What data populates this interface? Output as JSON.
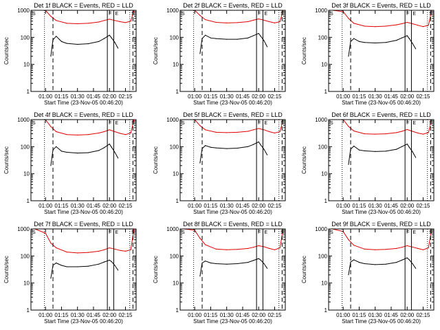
{
  "figure": {
    "start_label": "Start Time (23-Nov-05 00:46:20)",
    "ylabel": "Counts/sec",
    "series_colors": {
      "events": "#000000",
      "lld": "#e00000"
    },
    "marker_labels": {
      "S_start": "S",
      "F": "F",
      "E": "E",
      "S_end": "S"
    }
  },
  "chart_data": [
    {
      "type": "line",
      "title": "Det 1f BLACK = Events, RED = LLD",
      "xlabel": "Start Time (23-Nov-05 00:46:20)",
      "ylabel": "Counts/sec",
      "y_scale": "log",
      "ylim": [
        1,
        1000
      ],
      "xlim": [
        "00:46:20",
        "02:25"
      ],
      "x_ticks": [
        "01:00",
        "01:15",
        "01:30",
        "01:45",
        "02:00",
        "02:15"
      ],
      "y_ticks": [
        "1",
        "10",
        "100",
        "1000"
      ],
      "markers": {
        "dotted": [
          "00:59",
          "02:19"
        ],
        "dashed": [
          "01:07",
          "02:22"
        ],
        "solid_F": "01:58",
        "solid_E": "02:04"
      },
      "series": [
        {
          "name": "Events",
          "color": "#000000",
          "x": [
            "01:05",
            "01:07",
            "01:10",
            "01:15",
            "01:20",
            "01:30",
            "01:40",
            "01:50",
            "01:55",
            "02:00",
            "02:02",
            "02:05",
            "02:08"
          ],
          "y": [
            20,
            80,
            110,
            70,
            60,
            55,
            58,
            70,
            90,
            120,
            95,
            65,
            40
          ]
        },
        {
          "name": "LLD",
          "color": "#e00000",
          "x": [
            "00:50",
            "01:00",
            "01:05",
            "01:10",
            "01:20",
            "01:30",
            "01:40",
            "01:50",
            "01:55",
            "02:00",
            "02:05",
            "02:10",
            "02:15",
            "02:20",
            "02:23"
          ],
          "y": [
            1000,
            1000,
            600,
            420,
            330,
            320,
            330,
            370,
            420,
            470,
            420,
            380,
            350,
            400,
            1000
          ]
        }
      ]
    },
    {
      "type": "line",
      "title": "Det 2f BLACK = Events, RED = LLD",
      "xlabel": "Start Time (23-Nov-05 00:46:20)",
      "ylabel": "Counts/sec",
      "y_scale": "log",
      "ylim": [
        1,
        1000
      ],
      "xlim": [
        "00:46:20",
        "02:25"
      ],
      "x_ticks": [
        "01:00",
        "01:15",
        "01:30",
        "01:45",
        "02:00",
        "02:15"
      ],
      "y_ticks": [
        "1",
        "10",
        "100",
        "1000"
      ],
      "markers": {
        "dotted": [
          "00:59",
          "02:19"
        ],
        "dashed": [
          "01:07",
          "02:22"
        ],
        "solid_F": "01:58",
        "solid_E": "02:04"
      },
      "series": [
        {
          "name": "Events",
          "color": "#000000",
          "x": [
            "01:05",
            "01:07",
            "01:10",
            "01:15",
            "01:20",
            "01:30",
            "01:40",
            "01:50",
            "01:55",
            "02:00",
            "02:02",
            "02:05",
            "02:08"
          ],
          "y": [
            25,
            90,
            120,
            95,
            90,
            85,
            85,
            95,
            115,
            140,
            110,
            75,
            45
          ]
        },
        {
          "name": "LLD",
          "color": "#e00000",
          "x": [
            "00:50",
            "01:00",
            "01:05",
            "01:10",
            "01:20",
            "01:30",
            "01:40",
            "01:50",
            "01:55",
            "02:00",
            "02:05",
            "02:10",
            "02:15",
            "02:20",
            "02:23"
          ],
          "y": [
            1000,
            1000,
            650,
            450,
            360,
            340,
            350,
            380,
            430,
            480,
            430,
            380,
            340,
            380,
            1000
          ]
        }
      ]
    },
    {
      "type": "line",
      "title": "Det 3f BLACK = Events, RED = LLD",
      "xlabel": "Start Time (23-Nov-05 00:46:20)",
      "ylabel": "Counts/sec",
      "y_scale": "log",
      "ylim": [
        1,
        1000
      ],
      "xlim": [
        "00:46:20",
        "02:25"
      ],
      "x_ticks": [
        "01:00",
        "01:15",
        "01:30",
        "01:45",
        "02:00",
        "02:15"
      ],
      "y_ticks": [
        "1",
        "10",
        "100",
        "1000"
      ],
      "markers": {
        "dotted": [
          "00:59",
          "02:19"
        ],
        "dashed": [
          "01:07",
          "02:22"
        ],
        "solid_F": "01:58",
        "solid_E": "02:04"
      },
      "series": [
        {
          "name": "Events",
          "color": "#000000",
          "x": [
            "01:05",
            "01:07",
            "01:10",
            "01:15",
            "01:20",
            "01:30",
            "01:40",
            "01:50",
            "01:55",
            "02:00",
            "02:02",
            "02:05",
            "02:08"
          ],
          "y": [
            20,
            70,
            90,
            70,
            65,
            62,
            65,
            78,
            95,
            115,
            90,
            60,
            38
          ]
        },
        {
          "name": "LLD",
          "color": "#e00000",
          "x": [
            "00:50",
            "01:00",
            "01:05",
            "01:10",
            "01:20",
            "01:30",
            "01:40",
            "01:50",
            "01:55",
            "02:00",
            "02:05",
            "02:10",
            "02:15",
            "02:20",
            "02:23"
          ],
          "y": [
            1000,
            900,
            500,
            330,
            260,
            250,
            260,
            290,
            320,
            360,
            320,
            280,
            250,
            280,
            1000
          ]
        }
      ]
    },
    {
      "type": "line",
      "title": "Det 4f BLACK = Events, RED = LLD",
      "xlabel": "Start Time (23-Nov-05 00:46:20)",
      "ylabel": "Counts/sec",
      "y_scale": "log",
      "ylim": [
        1,
        1000
      ],
      "xlim": [
        "00:46:20",
        "02:25"
      ],
      "x_ticks": [
        "01:00",
        "01:15",
        "01:30",
        "01:45",
        "02:00",
        "02:15"
      ],
      "y_ticks": [
        "1",
        "10",
        "100",
        "1000"
      ],
      "markers": {
        "dotted": [
          "00:59",
          "02:19"
        ],
        "dashed": [
          "01:07",
          "02:22"
        ],
        "solid_F": "01:58",
        "solid_E": "02:04"
      },
      "series": [
        {
          "name": "Events",
          "color": "#000000",
          "x": [
            "01:05",
            "01:07",
            "01:10",
            "01:15",
            "01:20",
            "01:30",
            "01:40",
            "01:50",
            "01:55",
            "02:00",
            "02:02",
            "02:05",
            "02:08"
          ],
          "y": [
            20,
            75,
            100,
            68,
            62,
            58,
            60,
            72,
            92,
            125,
            95,
            62,
            38
          ]
        },
        {
          "name": "LLD",
          "color": "#e00000",
          "x": [
            "00:50",
            "01:00",
            "01:05",
            "01:10",
            "01:20",
            "01:30",
            "01:40",
            "01:50",
            "01:55",
            "02:00",
            "02:05",
            "02:10",
            "02:15",
            "02:20",
            "02:23"
          ],
          "y": [
            1000,
            1000,
            550,
            360,
            280,
            270,
            280,
            320,
            360,
            420,
            360,
            310,
            280,
            320,
            1000
          ]
        }
      ]
    },
    {
      "type": "line",
      "title": "Det 5f BLACK = Events, RED = LLD",
      "xlabel": "Start Time (23-Nov-05 00:46:20)",
      "ylabel": "Counts/sec",
      "y_scale": "log",
      "ylim": [
        1,
        1000
      ],
      "xlim": [
        "00:46:20",
        "02:25"
      ],
      "x_ticks": [
        "01:00",
        "01:15",
        "01:30",
        "01:45",
        "02:00",
        "02:15"
      ],
      "y_ticks": [
        "1",
        "10",
        "100",
        "1000"
      ],
      "markers": {
        "dotted": [
          "00:59",
          "02:19"
        ],
        "dashed": [
          "01:07",
          "02:22"
        ],
        "solid_F": "01:58",
        "solid_E": "02:04"
      },
      "series": [
        {
          "name": "Events",
          "color": "#000000",
          "x": [
            "01:05",
            "01:07",
            "01:10",
            "01:15",
            "01:20",
            "01:30",
            "01:40",
            "01:50",
            "01:55",
            "02:00",
            "02:02",
            "02:05",
            "02:08"
          ],
          "y": [
            25,
            85,
            110,
            95,
            90,
            85,
            88,
            100,
            120,
            150,
            115,
            80,
            50
          ]
        },
        {
          "name": "LLD",
          "color": "#e00000",
          "x": [
            "00:50",
            "01:00",
            "01:05",
            "01:10",
            "01:20",
            "01:30",
            "01:40",
            "01:50",
            "01:55",
            "02:00",
            "02:05",
            "02:10",
            "02:15",
            "02:20",
            "02:23"
          ],
          "y": [
            1000,
            1000,
            600,
            420,
            340,
            330,
            340,
            370,
            420,
            470,
            420,
            360,
            320,
            360,
            1000
          ]
        }
      ]
    },
    {
      "type": "line",
      "title": "Det 6f BLACK = Events, RED = LLD",
      "xlabel": "Start Time (23-Nov-05 00:46:20)",
      "ylabel": "Counts/sec",
      "y_scale": "log",
      "ylim": [
        1,
        1000
      ],
      "xlim": [
        "00:46:20",
        "02:25"
      ],
      "x_ticks": [
        "01:00",
        "01:15",
        "01:30",
        "01:45",
        "02:00",
        "02:15"
      ],
      "y_ticks": [
        "1",
        "10",
        "100",
        "1000"
      ],
      "markers": {
        "dotted": [
          "00:59",
          "02:19"
        ],
        "dashed": [
          "01:07",
          "02:22"
        ],
        "solid_F": "01:58",
        "solid_E": "02:04"
      },
      "series": [
        {
          "name": "Events",
          "color": "#000000",
          "x": [
            "01:05",
            "01:07",
            "01:10",
            "01:15",
            "01:20",
            "01:30",
            "01:40",
            "01:50",
            "01:55",
            "02:00",
            "02:02",
            "02:05",
            "02:08"
          ],
          "y": [
            22,
            80,
            105,
            75,
            70,
            66,
            68,
            80,
            100,
            125,
            95,
            65,
            40
          ]
        },
        {
          "name": "LLD",
          "color": "#e00000",
          "x": [
            "00:50",
            "01:00",
            "01:05",
            "01:10",
            "01:20",
            "01:30",
            "01:40",
            "01:50",
            "01:55",
            "02:00",
            "02:05",
            "02:10",
            "02:15",
            "02:20",
            "02:23"
          ],
          "y": [
            1000,
            1000,
            560,
            380,
            300,
            290,
            300,
            330,
            370,
            430,
            370,
            320,
            290,
            330,
            1000
          ]
        }
      ]
    },
    {
      "type": "line",
      "title": "Det 7f BLACK = Events, RED = LLD",
      "xlabel": "Start Time (23-Nov-05 00:46:20)",
      "ylabel": "Counts/sec",
      "y_scale": "log",
      "ylim": [
        1,
        1000
      ],
      "xlim": [
        "00:46:20",
        "02:25"
      ],
      "x_ticks": [
        "01:00",
        "01:15",
        "01:30",
        "01:45",
        "02:00",
        "02:15"
      ],
      "y_ticks": [
        "1",
        "10",
        "100",
        "1000"
      ],
      "markers": {
        "dotted": [
          "00:59",
          "02:19"
        ],
        "dashed": [
          "01:07",
          "02:22"
        ],
        "solid_F": "01:58",
        "solid_E": "02:04"
      },
      "series": [
        {
          "name": "Events",
          "color": "#000000",
          "x": [
            "01:05",
            "01:07",
            "01:10",
            "01:15",
            "01:20",
            "01:30",
            "01:40",
            "01:50",
            "01:55",
            "02:00",
            "02:02",
            "02:05",
            "02:08"
          ],
          "y": [
            15,
            45,
            55,
            45,
            40,
            40,
            42,
            50,
            60,
            70,
            62,
            45,
            30
          ]
        },
        {
          "name": "LLD",
          "color": "#e00000",
          "x": [
            "00:50",
            "01:00",
            "01:05",
            "01:10",
            "01:20",
            "01:30",
            "01:40",
            "01:50",
            "01:55",
            "02:00",
            "02:05",
            "02:10",
            "02:15",
            "02:20",
            "02:23"
          ],
          "y": [
            1000,
            700,
            300,
            200,
            140,
            130,
            135,
            150,
            170,
            200,
            180,
            160,
            150,
            170,
            1000
          ]
        }
      ]
    },
    {
      "type": "line",
      "title": "Det 8f BLACK = Events, RED = LLD",
      "xlabel": "Start Time (23-Nov-05 00:46:20)",
      "ylabel": "Counts/sec",
      "y_scale": "log",
      "ylim": [
        1,
        1000
      ],
      "xlim": [
        "00:46:20",
        "02:25"
      ],
      "x_ticks": [
        "01:00",
        "01:15",
        "01:30",
        "01:45",
        "02:00",
        "02:15"
      ],
      "y_ticks": [
        "1",
        "10",
        "100",
        "1000"
      ],
      "markers": {
        "dotted": [
          "00:59",
          "02:19"
        ],
        "dashed": [
          "01:07",
          "02:22"
        ],
        "solid_F": "01:58",
        "solid_E": "02:04"
      },
      "series": [
        {
          "name": "Events",
          "color": "#000000",
          "x": [
            "01:05",
            "01:07",
            "01:10",
            "01:15",
            "01:20",
            "01:30",
            "01:40",
            "01:50",
            "01:55",
            "02:00",
            "02:02",
            "02:05",
            "02:08"
          ],
          "y": [
            18,
            55,
            65,
            55,
            52,
            50,
            52,
            58,
            68,
            80,
            70,
            52,
            35
          ]
        },
        {
          "name": "LLD",
          "color": "#e00000",
          "x": [
            "00:50",
            "01:00",
            "01:05",
            "01:10",
            "01:20",
            "01:30",
            "01:40",
            "01:50",
            "01:55",
            "02:00",
            "02:05",
            "02:10",
            "02:15",
            "02:20",
            "02:23"
          ],
          "y": [
            1000,
            900,
            450,
            260,
            180,
            170,
            175,
            190,
            210,
            240,
            220,
            190,
            170,
            200,
            1000
          ]
        }
      ]
    },
    {
      "type": "line",
      "title": "Det 9f BLACK = Events, RED = LLD",
      "xlabel": "Start Time (23-Nov-05 00:46:20)",
      "ylabel": "Counts/sec",
      "y_scale": "log",
      "ylim": [
        1,
        1000
      ],
      "xlim": [
        "00:46:20",
        "02:25"
      ],
      "x_ticks": [
        "01:00",
        "01:15",
        "01:30",
        "01:45",
        "02:00",
        "02:15"
      ],
      "y_ticks": [
        "1",
        "10",
        "100",
        "1000"
      ],
      "markers": {
        "dotted": [
          "00:59",
          "02:19"
        ],
        "dashed": [
          "01:07",
          "02:22"
        ],
        "solid_F": "01:58",
        "solid_E": "02:04"
      },
      "series": [
        {
          "name": "Events",
          "color": "#000000",
          "x": [
            "01:05",
            "01:07",
            "01:10",
            "01:15",
            "01:20",
            "01:30",
            "01:40",
            "01:50",
            "01:55",
            "02:00",
            "02:02",
            "02:05",
            "02:08"
          ],
          "y": [
            20,
            60,
            72,
            58,
            52,
            48,
            50,
            58,
            70,
            85,
            72,
            52,
            35
          ]
        },
        {
          "name": "LLD",
          "color": "#e00000",
          "x": [
            "00:50",
            "01:00",
            "01:05",
            "01:10",
            "01:20",
            "01:30",
            "01:40",
            "01:50",
            "01:55",
            "02:00",
            "02:05",
            "02:10",
            "02:15",
            "02:20",
            "02:23"
          ],
          "y": [
            1000,
            800,
            400,
            250,
            180,
            170,
            175,
            190,
            210,
            240,
            215,
            190,
            170,
            200,
            1000
          ]
        }
      ]
    }
  ]
}
